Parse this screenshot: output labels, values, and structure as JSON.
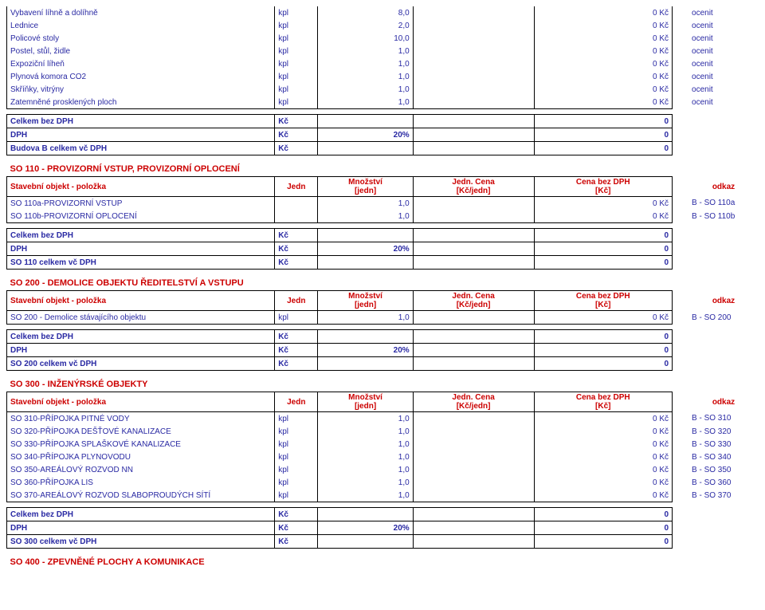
{
  "topRows": [
    {
      "label": "Vybavení líhně a dolíhně",
      "unit": "kpl",
      "qty": "8,0",
      "ucost": "",
      "total": "0 Kč",
      "odkaz": "ocenit"
    },
    {
      "label": "Lednice",
      "unit": "kpl",
      "qty": "2,0",
      "ucost": "",
      "total": "0 Kč",
      "odkaz": "ocenit"
    },
    {
      "label": "Policové stoly",
      "unit": "kpl",
      "qty": "10,0",
      "ucost": "",
      "total": "0 Kč",
      "odkaz": "ocenit"
    },
    {
      "label": "Postel, stůl, židle",
      "unit": "kpl",
      "qty": "1,0",
      "ucost": "",
      "total": "0 Kč",
      "odkaz": "ocenit"
    },
    {
      "label": "Expoziční líheň",
      "unit": "kpl",
      "qty": "1,0",
      "ucost": "",
      "total": "0 Kč",
      "odkaz": "ocenit"
    },
    {
      "label": "Plynová komora CO2",
      "unit": "kpl",
      "qty": "1,0",
      "ucost": "",
      "total": "0 Kč",
      "odkaz": "ocenit"
    },
    {
      "label": "Skříňky, vitrýny",
      "unit": "kpl",
      "qty": "1,0",
      "ucost": "",
      "total": "0 Kč",
      "odkaz": "ocenit"
    },
    {
      "label": "Zatemněné prosklených ploch",
      "unit": "kpl",
      "qty": "1,0",
      "ucost": "",
      "total": "0 Kč",
      "odkaz": "ocenit"
    }
  ],
  "topSums": [
    {
      "label": "Celkem bez DPH",
      "unit": "Kč",
      "qty": "",
      "ucost": "",
      "total": "0"
    },
    {
      "label": "DPH",
      "unit": "Kč",
      "qty": "20%",
      "ucost": "",
      "total": "0"
    },
    {
      "label": "Budova B celkem vč DPH",
      "unit": "Kč",
      "qty": "",
      "ucost": "",
      "total": "0"
    }
  ],
  "headers": {
    "polozka": "Stavební objekt - položka",
    "jedn": "Jedn",
    "qty1": "Množství",
    "qty2": "[jedn]",
    "uc1": "Jedn. Cena",
    "uc2": "[Kč/jedn]",
    "tot1": "Cena bez DPH",
    "tot2": "[Kč]",
    "odkaz": "odkaz"
  },
  "sections": [
    {
      "title": "SO 110 - PROVIZORNÍ VSTUP, PROVIZORNÍ OPLOCENÍ",
      "rows": [
        {
          "label": "SO 110a-PROVIZORNÍ VSTUP",
          "unit": "",
          "qty": "1,0",
          "ucost": "",
          "total": "0 Kč",
          "odkaz": "B - SO 110a"
        },
        {
          "label": "SO 110b-PROVIZORNÍ OPLOCENÍ",
          "unit": "",
          "qty": "1,0",
          "ucost": "",
          "total": "0 Kč",
          "odkaz": "B - SO 110b"
        }
      ],
      "sums": [
        {
          "label": "Celkem bez DPH",
          "unit": "Kč",
          "qty": "",
          "ucost": "",
          "total": "0"
        },
        {
          "label": "DPH",
          "unit": "Kč",
          "qty": "20%",
          "ucost": "",
          "total": "0"
        },
        {
          "label": "SO 110 celkem vč DPH",
          "unit": "Kč",
          "qty": "",
          "ucost": "",
          "total": "0"
        }
      ]
    },
    {
      "title": "SO 200 - DEMOLICE OBJEKTU ŘEDITELSTVÍ A VSTUPU",
      "rows": [
        {
          "label": "SO 200 - Demolice stávajícího objektu",
          "unit": "kpl",
          "qty": "1,0",
          "ucost": "",
          "total": "0 Kč",
          "odkaz": "B - SO 200"
        }
      ],
      "sums": [
        {
          "label": "Celkem bez DPH",
          "unit": "Kč",
          "qty": "",
          "ucost": "",
          "total": "0"
        },
        {
          "label": "DPH",
          "unit": "Kč",
          "qty": "20%",
          "ucost": "",
          "total": "0"
        },
        {
          "label": "SO 200 celkem vč DPH",
          "unit": "Kč",
          "qty": "",
          "ucost": "",
          "total": "0"
        }
      ]
    },
    {
      "title": "SO 300 - INŽENÝRSKÉ OBJEKTY",
      "rows": [
        {
          "label": "SO 310-PŘÍPOJKA PITNÉ VODY",
          "unit": "kpl",
          "qty": "1,0",
          "ucost": "",
          "total": "0 Kč",
          "odkaz": "B - SO 310"
        },
        {
          "label": "SO 320-PŘÍPOJKA DEŠŤOVÉ KANALIZACE",
          "unit": "kpl",
          "qty": "1,0",
          "ucost": "",
          "total": "0 Kč",
          "odkaz": "B - SO 320"
        },
        {
          "label": "SO 330-PŘÍPOJKA SPLAŠKOVÉ KANALIZACE",
          "unit": "kpl",
          "qty": "1,0",
          "ucost": "",
          "total": "0 Kč",
          "odkaz": "B - SO 330"
        },
        {
          "label": "SO 340-PŘÍPOJKA PLYNOVODU",
          "unit": "kpl",
          "qty": "1,0",
          "ucost": "",
          "total": "0 Kč",
          "odkaz": "B - SO 340"
        },
        {
          "label": "SO 350-AREÁLOVÝ ROZVOD NN",
          "unit": "kpl",
          "qty": "1,0",
          "ucost": "",
          "total": "0 Kč",
          "odkaz": "B - SO 350"
        },
        {
          "label": "SO 360-PŘÍPOJKA LIS",
          "unit": "kpl",
          "qty": "1,0",
          "ucost": "",
          "total": "0 Kč",
          "odkaz": "B - SO 360"
        },
        {
          "label": "SO 370-AREÁLOVÝ ROZVOD SLABOPROUDÝCH SÍTÍ",
          "unit": "kpl",
          "qty": "1,0",
          "ucost": "",
          "total": "0 Kč",
          "odkaz": "B - SO 370"
        }
      ],
      "sums": [
        {
          "label": "Celkem bez DPH",
          "unit": "Kč",
          "qty": "",
          "ucost": "",
          "total": "0"
        },
        {
          "label": "DPH",
          "unit": "Kč",
          "qty": "20%",
          "ucost": "",
          "total": "0"
        },
        {
          "label": "SO 300 celkem vč DPH",
          "unit": "Kč",
          "qty": "",
          "ucost": "",
          "total": "0"
        }
      ]
    }
  ],
  "bottomTitle": "SO 400 - ZPEVNĚNÉ PLOCHY A KOMUNIKACE"
}
